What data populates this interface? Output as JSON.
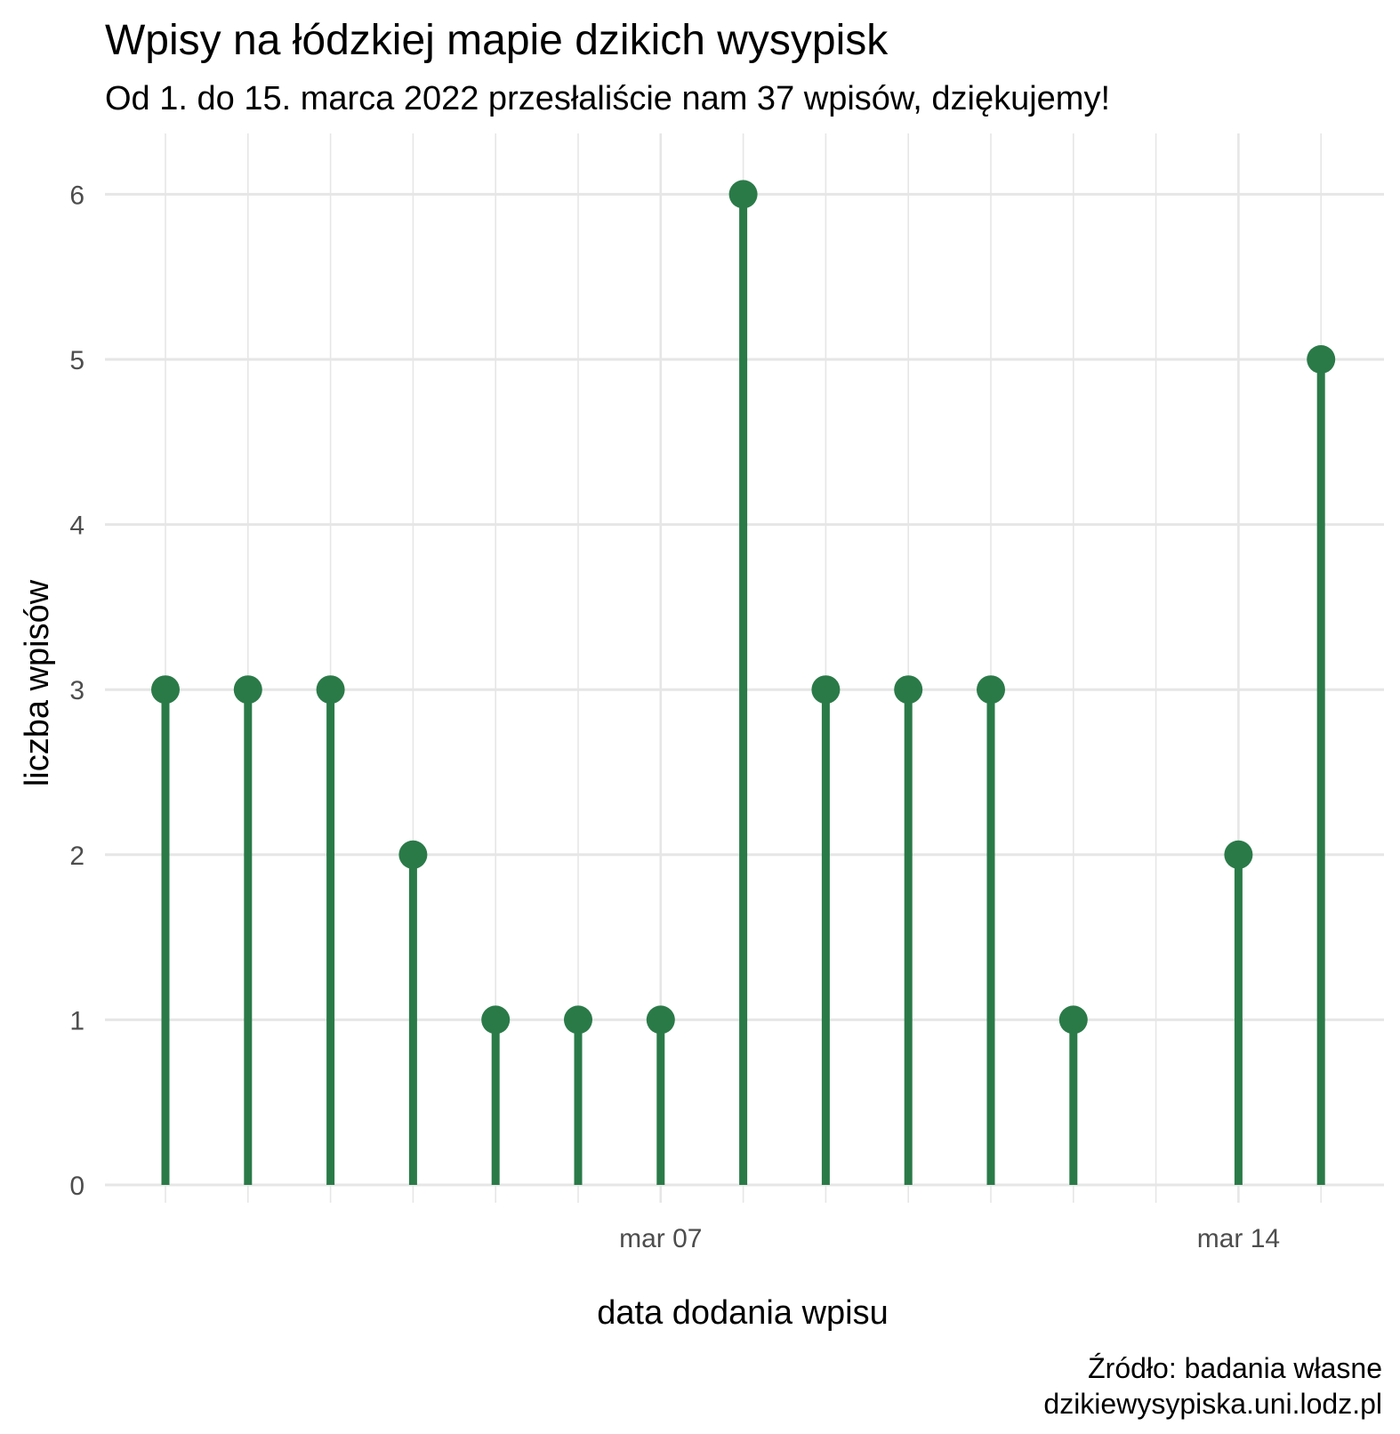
{
  "title": "Wpisy na łódzkiej mapie dzikich wysypisk",
  "subtitle": "Od 1. do 15. marca 2022 przesłaliście nam 37 wpisów, dziękujemy!",
  "caption": {
    "line1": "Źródło: badania własne",
    "line2": "dzikiewysypiska.uni.lodz.pl"
  },
  "colors": {
    "series": "#2a7a48",
    "grid": "#e6e6e6",
    "background": "#ffffff"
  },
  "chart_data": {
    "type": "lollipop",
    "xlabel": "data dodania wpisu",
    "ylabel": "liczba wpisów",
    "x": [
      "2022-03-01",
      "2022-03-02",
      "2022-03-03",
      "2022-03-04",
      "2022-03-05",
      "2022-03-06",
      "2022-03-07",
      "2022-03-08",
      "2022-03-09",
      "2022-03-10",
      "2022-03-11",
      "2022-03-12",
      "2022-03-14",
      "2022-03-15"
    ],
    "values": [
      3,
      3,
      3,
      2,
      1,
      1,
      1,
      6,
      3,
      3,
      3,
      1,
      2,
      5
    ],
    "xlim": [
      "2022-02-28",
      "2022-03-16"
    ],
    "ylim": [
      0,
      6
    ],
    "y_ticks": [
      0,
      1,
      2,
      3,
      4,
      5,
      6
    ],
    "x_ticks": [
      {
        "date": "2022-03-07",
        "label": "mar 07"
      },
      {
        "date": "2022-03-14",
        "label": "mar 14"
      }
    ],
    "grid": true
  }
}
